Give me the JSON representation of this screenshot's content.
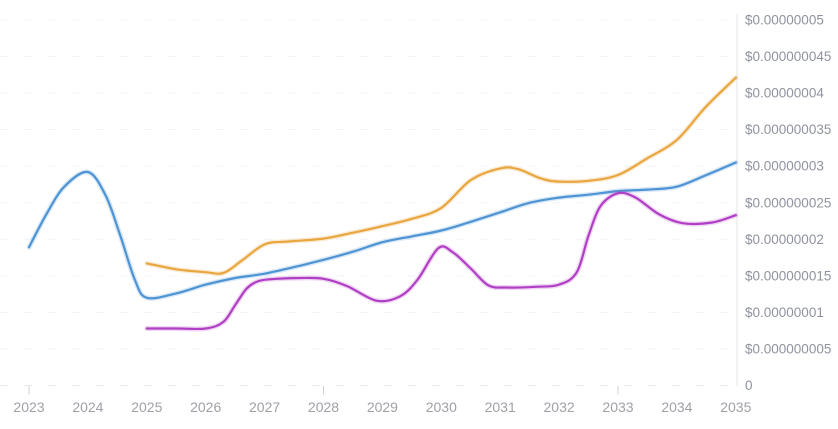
{
  "page": {
    "background_color": "#ffffff",
    "title": ""
  },
  "chart_data": {
    "type": "line",
    "title": "",
    "xlabel": "",
    "ylabel": "",
    "value_unit": "USD",
    "legend": {
      "visible": false
    },
    "grid": {
      "horizontal": true,
      "style": "dashed"
    },
    "x_axis": {
      "range": [
        2023,
        2035
      ],
      "tick_labels": [
        "2023",
        "2024",
        "2025",
        "2026",
        "2027",
        "2028",
        "2029",
        "2030",
        "2031",
        "2032",
        "2033",
        "2034",
        "2035"
      ],
      "tick_values": [
        2023,
        2024,
        2025,
        2026,
        2027,
        2028,
        2029,
        2030,
        2031,
        2032,
        2033,
        2034,
        2035
      ],
      "major_tick_years": [
        2023,
        2028,
        2033
      ]
    },
    "y_axis": {
      "side": "right",
      "range": [
        0,
        5e-08
      ],
      "tick_labels": [
        "$0.00000005",
        "$0.000000045",
        "$0.00000004",
        "$0.000000035",
        "$0.00000003",
        "$0.000000025",
        "$0.00000002",
        "$0.000000015",
        "$0.00000001",
        "$0.000000005",
        "0"
      ],
      "tick_values": [
        5e-08,
        4.5e-08,
        4e-08,
        3.5e-08,
        3e-08,
        2.5e-08,
        2e-08,
        1.5e-08,
        1e-08,
        5e-09,
        0
      ]
    },
    "series": [
      {
        "name": "line-orange",
        "color": "#e9a63f",
        "points": [
          [
            2025.0,
            1.67e-08
          ],
          [
            2025.5,
            1.59e-08
          ],
          [
            2026.0,
            1.55e-08
          ],
          [
            2026.3,
            1.54e-08
          ],
          [
            2026.6,
            1.7e-08
          ],
          [
            2027.0,
            1.93e-08
          ],
          [
            2027.4,
            1.97e-08
          ],
          [
            2028.0,
            2.01e-08
          ],
          [
            2028.5,
            2.09e-08
          ],
          [
            2029.0,
            2.18e-08
          ],
          [
            2029.5,
            2.28e-08
          ],
          [
            2030.0,
            2.43e-08
          ],
          [
            2030.5,
            2.81e-08
          ],
          [
            2031.0,
            2.97e-08
          ],
          [
            2031.3,
            2.96e-08
          ],
          [
            2031.7,
            2.83e-08
          ],
          [
            2032.0,
            2.79e-08
          ],
          [
            2032.5,
            2.8e-08
          ],
          [
            2033.0,
            2.88e-08
          ],
          [
            2033.5,
            3.11e-08
          ],
          [
            2034.0,
            3.36e-08
          ],
          [
            2034.5,
            3.82e-08
          ],
          [
            2035.0,
            4.21e-08
          ]
        ]
      },
      {
        "name": "line-blue",
        "color": "#4e94d4",
        "points": [
          [
            2023.0,
            1.89e-08
          ],
          [
            2023.3,
            2.35e-08
          ],
          [
            2023.6,
            2.72e-08
          ],
          [
            2024.0,
            2.92e-08
          ],
          [
            2024.3,
            2.6e-08
          ],
          [
            2024.55,
            2.05e-08
          ],
          [
            2024.8,
            1.44e-08
          ],
          [
            2025.0,
            1.2e-08
          ],
          [
            2025.5,
            1.26e-08
          ],
          [
            2026.0,
            1.38e-08
          ],
          [
            2026.5,
            1.47e-08
          ],
          [
            2027.0,
            1.53e-08
          ],
          [
            2027.5,
            1.62e-08
          ],
          [
            2028.0,
            1.72e-08
          ],
          [
            2028.5,
            1.83e-08
          ],
          [
            2029.0,
            1.96e-08
          ],
          [
            2029.5,
            2.04e-08
          ],
          [
            2030.0,
            2.12e-08
          ],
          [
            2030.5,
            2.24e-08
          ],
          [
            2031.0,
            2.37e-08
          ],
          [
            2031.5,
            2.5e-08
          ],
          [
            2032.0,
            2.57e-08
          ],
          [
            2032.5,
            2.61e-08
          ],
          [
            2033.0,
            2.66e-08
          ],
          [
            2033.5,
            2.68e-08
          ],
          [
            2034.0,
            2.72e-08
          ],
          [
            2034.5,
            2.88e-08
          ],
          [
            2035.0,
            3.05e-08
          ]
        ]
      },
      {
        "name": "line-magenta",
        "color": "#b13fc5",
        "points": [
          [
            2025.0,
            7.8e-09
          ],
          [
            2025.5,
            7.8e-09
          ],
          [
            2026.0,
            7.8e-09
          ],
          [
            2026.3,
            8.7e-09
          ],
          [
            2026.5,
            1.1e-08
          ],
          [
            2026.7,
            1.33e-08
          ],
          [
            2026.9,
            1.43e-08
          ],
          [
            2027.2,
            1.46e-08
          ],
          [
            2027.6,
            1.47e-08
          ],
          [
            2028.0,
            1.46e-08
          ],
          [
            2028.4,
            1.36e-08
          ],
          [
            2028.9,
            1.16e-08
          ],
          [
            2029.3,
            1.22e-08
          ],
          [
            2029.6,
            1.45e-08
          ],
          [
            2029.95,
            1.88e-08
          ],
          [
            2030.2,
            1.82e-08
          ],
          [
            2030.5,
            1.6e-08
          ],
          [
            2030.8,
            1.37e-08
          ],
          [
            2031.1,
            1.34e-08
          ],
          [
            2031.6,
            1.35e-08
          ],
          [
            2032.0,
            1.38e-08
          ],
          [
            2032.3,
            1.55e-08
          ],
          [
            2032.5,
            2.05e-08
          ],
          [
            2032.7,
            2.45e-08
          ],
          [
            2033.0,
            2.63e-08
          ],
          [
            2033.3,
            2.57e-08
          ],
          [
            2033.7,
            2.34e-08
          ],
          [
            2034.1,
            2.22e-08
          ],
          [
            2034.6,
            2.23e-08
          ],
          [
            2035.0,
            2.33e-08
          ]
        ]
      }
    ],
    "style": {
      "grid_color": "#f3f3f6",
      "baseline_color": "#e9e9ec",
      "axis_line_color": "#e4e4e7",
      "tick_mark_color": "#d2d2d6",
      "y_label_color": "#8f939f",
      "x_label_color": "#9fa1a7"
    }
  }
}
